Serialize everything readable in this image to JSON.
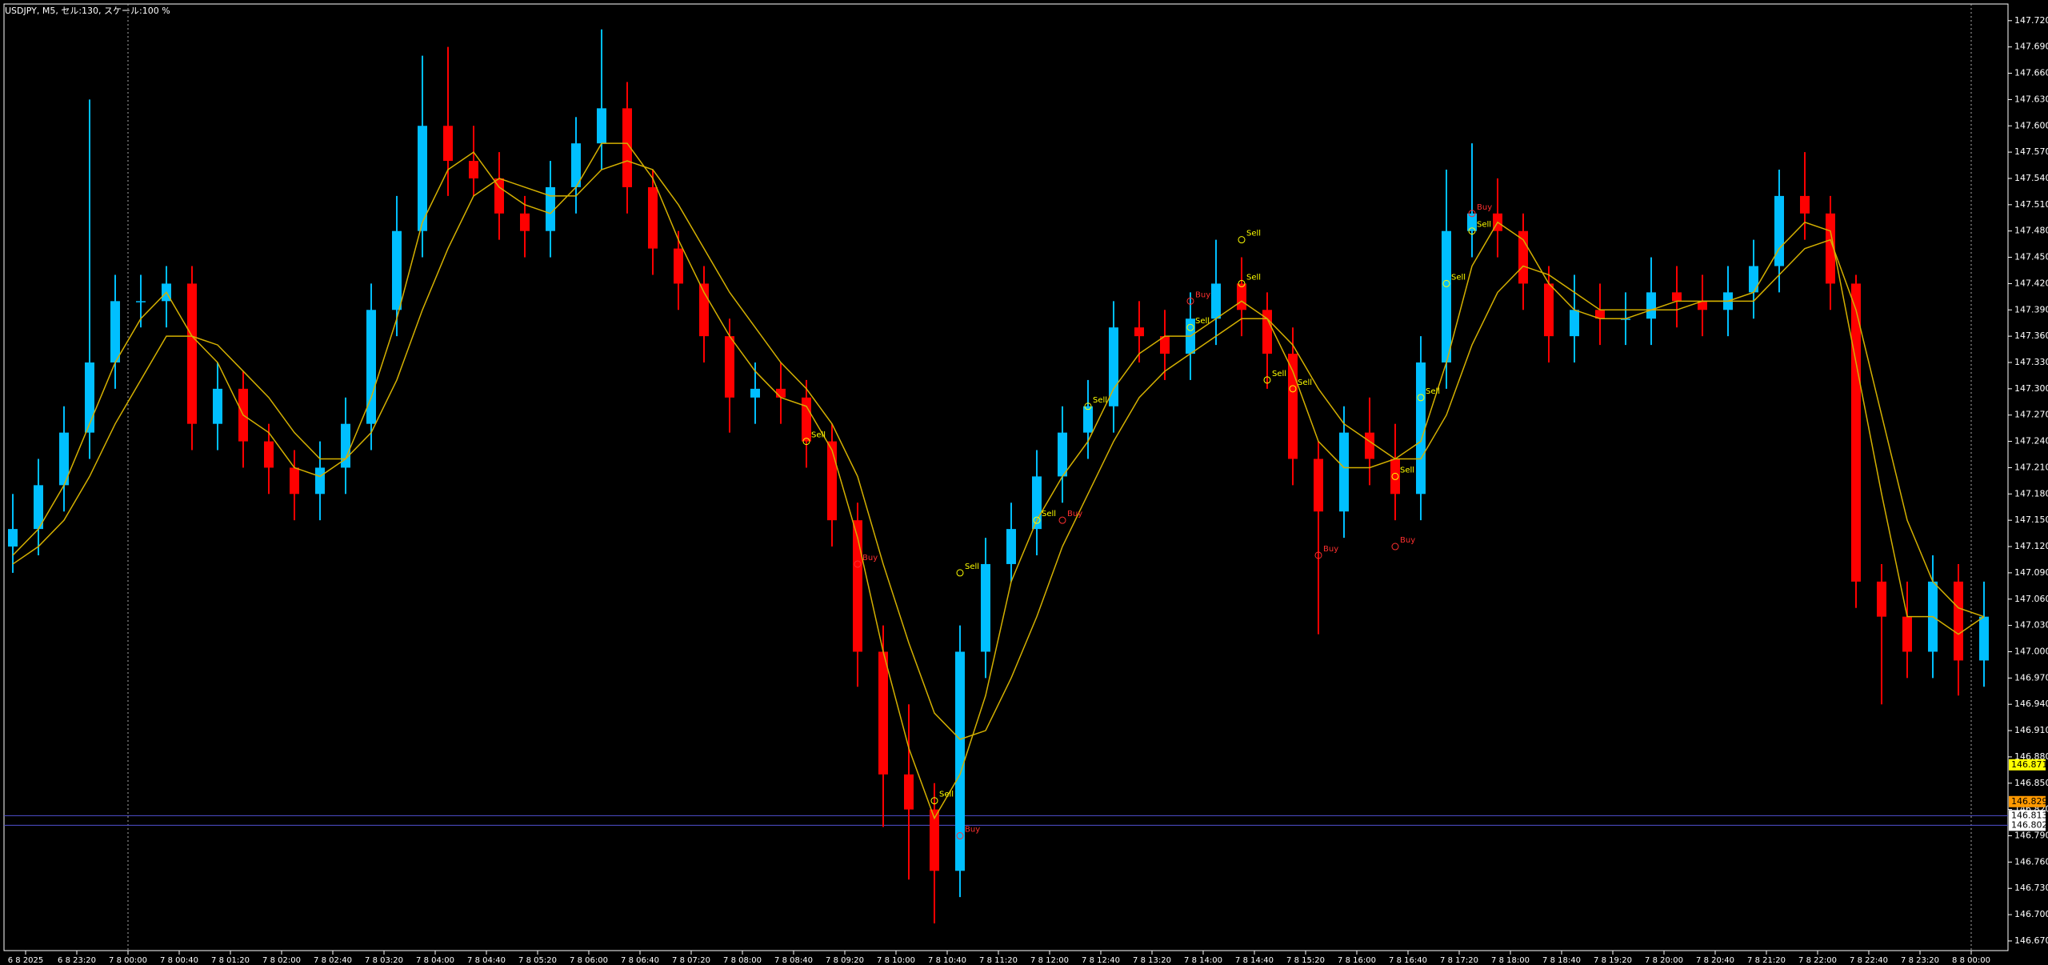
{
  "chart_data": {
    "type": "candlestick",
    "title": "USDJPY, M5, セル:130, スケール:100 %",
    "up_color": "#00bfff",
    "down_color": "#ff0000",
    "ma_color": "#d4b000",
    "ylim": [
      146.659,
      147.739
    ],
    "yticks": [
      {
        "value": 147.72,
        "label": "147.720"
      },
      {
        "value": 147.69,
        "label": "147.690"
      },
      {
        "value": 147.66,
        "label": "147.660"
      },
      {
        "value": 147.63,
        "label": "147.630"
      },
      {
        "value": 147.6,
        "label": "147.600"
      },
      {
        "value": 147.57,
        "label": "147.570"
      },
      {
        "value": 147.54,
        "label": "147.540"
      },
      {
        "value": 147.51,
        "label": "147.510"
      },
      {
        "value": 147.48,
        "label": "147.480"
      },
      {
        "value": 147.45,
        "label": "147.450"
      },
      {
        "value": 147.42,
        "label": "147.420"
      },
      {
        "value": 147.39,
        "label": "147.390"
      },
      {
        "value": 147.36,
        "label": "147.360"
      },
      {
        "value": 147.33,
        "label": "147.330"
      },
      {
        "value": 147.3,
        "label": "147.300"
      },
      {
        "value": 147.27,
        "label": "147.270"
      },
      {
        "value": 147.24,
        "label": "147.240"
      },
      {
        "value": 147.21,
        "label": "147.210"
      },
      {
        "value": 147.18,
        "label": "147.180"
      },
      {
        "value": 147.15,
        "label": "147.150"
      },
      {
        "value": 147.12,
        "label": "147.120"
      },
      {
        "value": 147.09,
        "label": "147.090"
      },
      {
        "value": 147.06,
        "label": "147.060"
      },
      {
        "value": 147.03,
        "label": "147.030"
      },
      {
        "value": 147.0,
        "label": "147.000"
      },
      {
        "value": 146.97,
        "label": "146.970"
      },
      {
        "value": 146.94,
        "label": "146.940"
      },
      {
        "value": 146.91,
        "label": "146.910"
      },
      {
        "value": 146.88,
        "label": "146.880"
      },
      {
        "value": 146.85,
        "label": "146.850"
      },
      {
        "value": 146.82,
        "label": "146.820"
      },
      {
        "value": 146.79,
        "label": "146.790"
      },
      {
        "value": 146.76,
        "label": "146.760"
      },
      {
        "value": 146.73,
        "label": "146.730"
      },
      {
        "value": 146.7,
        "label": "146.700"
      },
      {
        "value": 146.67,
        "label": "146.670"
      }
    ],
    "xtick_labels": [
      "6 8 2025",
      "6 8 23:20",
      "7 8 00:00",
      "7 8 00:40",
      "7 8 01:20",
      "7 8 02:00",
      "7 8 02:40",
      "7 8 03:20",
      "7 8 04:00",
      "7 8 04:40",
      "7 8 05:20",
      "7 8 06:00",
      "7 8 06:40",
      "7 8 07:20",
      "7 8 08:00",
      "7 8 08:40",
      "7 8 09:20",
      "7 8 10:00",
      "7 8 10:40",
      "7 8 11:20",
      "7 8 12:00",
      "7 8 12:40",
      "7 8 13:20",
      "7 8 14:00",
      "7 8 14:40",
      "7 8 15:20",
      "7 8 16:00",
      "7 8 16:40",
      "7 8 17:20",
      "7 8 18:00",
      "7 8 18:40",
      "7 8 19:20",
      "7 8 20:00",
      "7 8 20:40",
      "7 8 21:20",
      "7 8 22:00",
      "7 8 22:40",
      "7 8 23:20",
      "8 8 00:00"
    ],
    "day_separators": [
      "7 8 00:00",
      "8 8 00:00"
    ],
    "open": [
      147.12,
      147.14,
      147.19,
      147.25,
      147.33,
      147.4,
      147.4,
      147.42,
      147.26,
      147.3,
      147.24,
      147.21,
      147.18,
      147.21,
      147.26,
      147.39,
      147.48,
      147.6,
      147.56,
      147.54,
      147.5,
      147.48,
      147.53,
      147.58,
      147.62,
      147.53,
      147.46,
      147.42,
      147.36,
      147.29,
      147.3,
      147.29,
      147.24,
      147.15,
      147.0,
      146.86,
      146.82,
      146.75,
      147.0,
      147.1,
      147.14,
      147.2,
      147.25,
      147.28,
      147.37,
      147.36,
      147.34,
      147.38,
      147.42,
      147.39,
      147.34,
      147.22,
      147.16,
      147.25,
      147.22,
      147.18,
      147.33,
      147.48,
      147.5,
      147.48,
      147.42,
      147.36,
      147.39,
      147.38,
      147.38,
      147.41,
      147.4,
      147.39,
      147.41,
      147.44,
      147.52,
      147.5,
      147.42,
      147.08,
      147.04,
      147.0,
      147.08,
      146.99
    ],
    "high": [
      147.18,
      147.22,
      147.28,
      147.63,
      147.43,
      147.43,
      147.44,
      147.44,
      147.33,
      147.32,
      147.26,
      147.23,
      147.24,
      147.29,
      147.42,
      147.52,
      147.68,
      147.69,
      147.6,
      147.57,
      147.52,
      147.56,
      147.61,
      147.71,
      147.65,
      147.55,
      147.48,
      147.44,
      147.38,
      147.33,
      147.33,
      147.31,
      147.26,
      147.17,
      147.03,
      146.94,
      146.85,
      147.03,
      147.13,
      147.17,
      147.23,
      147.28,
      147.31,
      147.4,
      147.4,
      147.39,
      147.41,
      147.47,
      147.45,
      147.41,
      147.37,
      147.24,
      147.28,
      147.29,
      147.26,
      147.36,
      147.55,
      147.58,
      147.54,
      147.5,
      147.44,
      147.43,
      147.42,
      147.41,
      147.45,
      147.44,
      147.43,
      147.44,
      147.47,
      147.55,
      147.57,
      147.52,
      147.43,
      147.1,
      147.08,
      147.11,
      147.1,
      147.08
    ],
    "low": [
      147.09,
      147.11,
      147.16,
      147.22,
      147.3,
      147.37,
      147.37,
      147.23,
      147.23,
      147.21,
      147.18,
      147.15,
      147.15,
      147.18,
      147.23,
      147.36,
      147.45,
      147.52,
      147.52,
      147.47,
      147.45,
      147.45,
      147.5,
      147.55,
      147.5,
      147.43,
      147.39,
      147.33,
      147.25,
      147.26,
      147.26,
      147.21,
      147.12,
      146.96,
      146.8,
      146.74,
      146.69,
      146.72,
      146.97,
      147.08,
      147.11,
      147.17,
      147.22,
      147.25,
      147.33,
      147.31,
      147.31,
      147.35,
      147.36,
      147.3,
      147.19,
      147.02,
      147.13,
      147.19,
      147.15,
      147.15,
      147.3,
      147.45,
      147.45,
      147.39,
      147.33,
      147.33,
      147.35,
      147.35,
      147.35,
      147.37,
      147.36,
      147.36,
      147.38,
      147.41,
      147.47,
      147.39,
      147.05,
      146.94,
      146.97,
      146.97,
      146.95,
      146.96
    ],
    "close": [
      147.14,
      147.19,
      147.25,
      147.33,
      147.4,
      147.4,
      147.42,
      147.26,
      147.3,
      147.24,
      147.21,
      147.18,
      147.21,
      147.26,
      147.39,
      147.48,
      147.6,
      147.56,
      147.54,
      147.5,
      147.48,
      147.53,
      147.58,
      147.62,
      147.53,
      147.46,
      147.42,
      147.36,
      147.29,
      147.3,
      147.29,
      147.24,
      147.15,
      147.0,
      146.86,
      146.82,
      146.75,
      147.0,
      147.1,
      147.14,
      147.2,
      147.25,
      147.28,
      147.37,
      147.36,
      147.34,
      147.38,
      147.42,
      147.39,
      147.34,
      147.22,
      147.16,
      147.25,
      147.22,
      147.18,
      147.33,
      147.48,
      147.5,
      147.48,
      147.42,
      147.36,
      147.39,
      147.38,
      147.38,
      147.41,
      147.4,
      147.39,
      147.41,
      147.44,
      147.52,
      147.5,
      147.42,
      147.08,
      147.04,
      147.0,
      147.08,
      146.99,
      147.04
    ],
    "ma_fast": [
      147.11,
      147.14,
      147.19,
      147.26,
      147.33,
      147.38,
      147.41,
      147.36,
      147.33,
      147.27,
      147.25,
      147.21,
      147.2,
      147.22,
      147.29,
      147.38,
      147.49,
      147.55,
      147.57,
      147.53,
      147.51,
      147.5,
      147.53,
      147.58,
      147.58,
      147.54,
      147.47,
      147.41,
      147.36,
      147.32,
      147.29,
      147.28,
      147.23,
      147.13,
      147.0,
      146.89,
      146.81,
      146.86,
      146.95,
      147.08,
      147.15,
      147.2,
      147.24,
      147.3,
      147.34,
      147.36,
      147.36,
      147.38,
      147.4,
      147.38,
      147.32,
      147.24,
      147.21,
      147.21,
      147.22,
      147.24,
      147.33,
      147.44,
      147.49,
      147.47,
      147.42,
      147.39,
      147.38,
      147.38,
      147.39,
      147.4,
      147.4,
      147.4,
      147.41,
      147.46,
      147.49,
      147.48,
      147.33,
      147.18,
      147.04,
      147.04,
      147.02,
      147.04
    ],
    "ma_slow": [
      147.1,
      147.12,
      147.15,
      147.2,
      147.26,
      147.31,
      147.36,
      147.36,
      147.35,
      147.32,
      147.29,
      147.25,
      147.22,
      147.22,
      147.25,
      147.31,
      147.39,
      147.46,
      147.52,
      147.54,
      147.53,
      147.52,
      147.52,
      147.55,
      147.56,
      147.55,
      147.51,
      147.46,
      147.41,
      147.37,
      147.33,
      147.3,
      147.26,
      147.2,
      147.1,
      147.01,
      146.93,
      146.9,
      146.91,
      146.97,
      147.04,
      147.12,
      147.18,
      147.24,
      147.29,
      147.32,
      147.34,
      147.36,
      147.38,
      147.38,
      147.35,
      147.3,
      147.26,
      147.24,
      147.22,
      147.22,
      147.27,
      147.35,
      147.41,
      147.44,
      147.43,
      147.41,
      147.39,
      147.39,
      147.39,
      147.39,
      147.4,
      147.4,
      147.4,
      147.43,
      147.46,
      147.47,
      147.39,
      147.27,
      147.15,
      147.08,
      147.05,
      147.04
    ],
    "hlines": [
      {
        "value": 146.813,
        "color": "#5050d0"
      },
      {
        "value": 146.802,
        "color": "#5050d0"
      }
    ],
    "price_labels": [
      {
        "value": 146.871,
        "bg": "#ffff00"
      },
      {
        "value": 146.829,
        "bg": "#ff9900"
      },
      {
        "value": 146.813,
        "bg": "#ffffff"
      },
      {
        "value": 146.802,
        "bg": "#ffffff"
      }
    ],
    "annotations": [
      {
        "text": "Sell",
        "index": 31,
        "value": 147.24,
        "color": "#ffff00"
      },
      {
        "text": "Buy",
        "index": 33,
        "value": 147.1,
        "color": "#ff3030"
      },
      {
        "text": "Sell",
        "index": 36,
        "value": 146.83,
        "color": "#ffff00"
      },
      {
        "text": "Buy",
        "index": 37,
        "value": 146.79,
        "color": "#ff3030"
      },
      {
        "text": "Sell",
        "index": 37,
        "value": 147.09,
        "color": "#ffff00"
      },
      {
        "text": "Sell",
        "index": 40,
        "value": 147.15,
        "color": "#ffff00"
      },
      {
        "text": "Buy",
        "index": 41,
        "value": 147.15,
        "color": "#ff3030"
      },
      {
        "text": "Sell",
        "index": 42,
        "value": 147.28,
        "color": "#ffff00"
      },
      {
        "text": "Sell",
        "index": 46,
        "value": 147.37,
        "color": "#ffff00"
      },
      {
        "text": "Buy",
        "index": 46,
        "value": 147.4,
        "color": "#ff3030"
      },
      {
        "text": "Sell",
        "index": 48,
        "value": 147.47,
        "color": "#ffff00"
      },
      {
        "text": "Sell",
        "index": 48,
        "value": 147.42,
        "color": "#ffff00"
      },
      {
        "text": "Sell",
        "index": 49,
        "value": 147.31,
        "color": "#ffff00"
      },
      {
        "text": "Sell",
        "index": 50,
        "value": 147.3,
        "color": "#ffff00"
      },
      {
        "text": "Buy",
        "index": 51,
        "value": 147.11,
        "color": "#ff3030"
      },
      {
        "text": "Sell",
        "index": 54,
        "value": 147.2,
        "color": "#ffff00"
      },
      {
        "text": "Buy",
        "index": 54,
        "value": 147.12,
        "color": "#ff3030"
      },
      {
        "text": "Sell",
        "index": 55,
        "value": 147.29,
        "color": "#ffff00"
      },
      {
        "text": "Sell",
        "index": 56,
        "value": 147.42,
        "color": "#ffff00"
      },
      {
        "text": "Sell",
        "index": 57,
        "value": 147.48,
        "color": "#ffff00"
      },
      {
        "text": "Buy",
        "index": 57,
        "value": 147.5,
        "color": "#ff3030"
      }
    ]
  }
}
